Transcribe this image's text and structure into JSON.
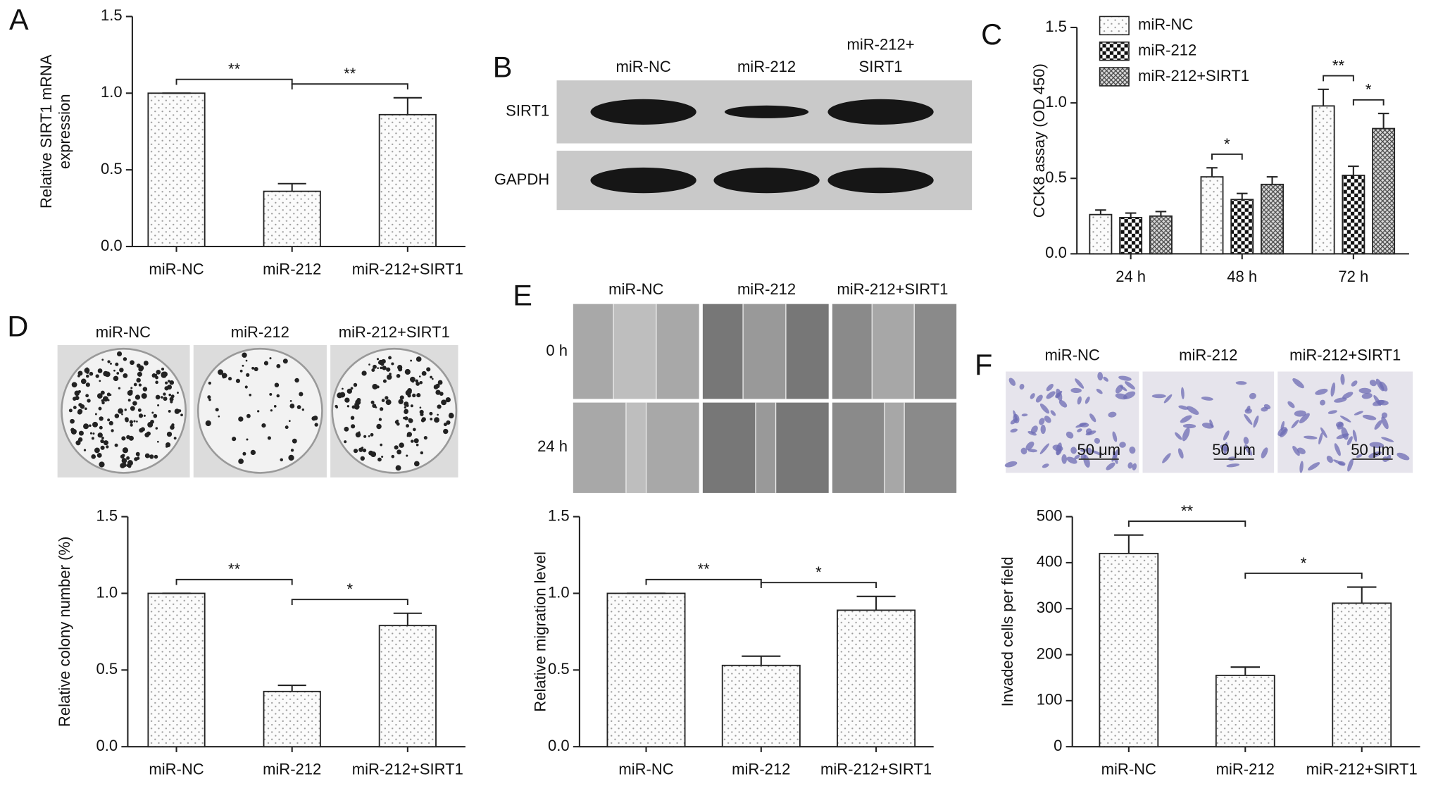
{
  "chart_data": [
    {
      "panel": "A",
      "type": "bar",
      "categories": [
        "miR-NC",
        "miR-212",
        "miR-212+SIRT1"
      ],
      "values": [
        1.0,
        0.36,
        0.86
      ],
      "errors": [
        0,
        0.05,
        0.11
      ],
      "pattern": "dots",
      "ylabel": [
        "Relative SIRT1 mRNA",
        "expression"
      ],
      "ylim": [
        0,
        1.5
      ],
      "yticks": [
        {
          "value": 0,
          "label": "0.0"
        },
        0.5,
        {
          "value": 1,
          "label": "1.0"
        },
        1.5
      ],
      "significance": [
        {
          "label": "**",
          "between": [
            "miR-NC",
            "miR-212"
          ]
        },
        {
          "label": "**",
          "between": [
            "miR-212",
            "miR-212+SIRT1"
          ]
        }
      ]
    },
    {
      "panel": "C",
      "type": "grouped_bar",
      "categories": [
        "24 h",
        "48 h",
        "72 h"
      ],
      "legend": "upper left",
      "series": [
        {
          "name": "miR-NC",
          "pattern": "dots",
          "values": [
            0.26,
            0.51,
            0.98
          ],
          "errors": [
            0.03,
            0.06,
            0.11
          ]
        },
        {
          "name": "miR-212",
          "pattern": "checker",
          "values": [
            0.24,
            0.36,
            0.52
          ],
          "errors": [
            0.03,
            0.04,
            0.06
          ]
        },
        {
          "name": "miR-212+SIRT1",
          "pattern": "crosshatch",
          "values": [
            0.25,
            0.46,
            0.83
          ],
          "errors": [
            0.03,
            0.05,
            0.1
          ]
        }
      ],
      "ylabel": "CCK8 assay (OD 450)",
      "ylim": [
        0,
        1.5
      ],
      "yticks": [
        {
          "value": 0,
          "label": "0.0"
        },
        0.5,
        {
          "value": 1,
          "label": "1.0"
        },
        1.5
      ],
      "significance": [
        {
          "label": "*",
          "category": "48 h",
          "between": [
            "miR-NC",
            "miR-212"
          ]
        },
        {
          "label": "**",
          "category": "72 h",
          "between": [
            "miR-NC",
            "miR-212"
          ]
        },
        {
          "label": "*",
          "category": "72 h",
          "between": [
            "miR-212",
            "miR-212+SIRT1"
          ]
        }
      ]
    },
    {
      "panel": "D",
      "type": "bar",
      "categories": [
        "miR-NC",
        "miR-212",
        "miR-212+SIRT1"
      ],
      "values": [
        1.0,
        0.36,
        0.79
      ],
      "errors": [
        0,
        0.04,
        0.08
      ],
      "pattern": "dots",
      "ylabel": "Relative colony number (%)",
      "ylim": [
        0,
        1.5
      ],
      "yticks": [
        {
          "value": 0,
          "label": "0.0"
        },
        0.5,
        {
          "value": 1,
          "label": "1.0"
        },
        1.5
      ],
      "significance": [
        {
          "label": "**",
          "between": [
            "miR-NC",
            "miR-212"
          ]
        },
        {
          "label": "*",
          "between": [
            "miR-212",
            "miR-212+SIRT1"
          ]
        }
      ]
    },
    {
      "panel": "E",
      "type": "bar",
      "categories": [
        "miR-NC",
        "miR-212",
        "miR-212+SIRT1"
      ],
      "values": [
        1.0,
        0.53,
        0.89
      ],
      "errors": [
        0,
        0.06,
        0.09
      ],
      "pattern": "dots",
      "ylabel": "Relative migration level",
      "ylim": [
        0,
        1.5
      ],
      "yticks": [
        {
          "value": 0,
          "label": "0.0"
        },
        0.5,
        {
          "value": 1,
          "label": "1.0"
        },
        1.5
      ],
      "significance": [
        {
          "label": "**",
          "between": [
            "miR-NC",
            "miR-212"
          ]
        },
        {
          "label": "*",
          "between": [
            "miR-212",
            "miR-212+SIRT1"
          ]
        }
      ]
    },
    {
      "panel": "F",
      "type": "bar",
      "categories": [
        "miR-NC",
        "miR-212",
        "miR-212+SIRT1"
      ],
      "values": [
        420,
        155,
        312
      ],
      "errors": [
        40,
        18,
        35
      ],
      "pattern": "dots",
      "ylabel": "Invaded cells per field",
      "ylim": [
        0,
        500
      ],
      "yticks": [
        0,
        100,
        200,
        300,
        400,
        500
      ],
      "significance": [
        {
          "label": "**",
          "between": [
            "miR-NC",
            "miR-212"
          ]
        },
        {
          "label": "*",
          "between": [
            "miR-212",
            "miR-212+SIRT1"
          ]
        }
      ]
    }
  ],
  "images": [
    {
      "panel": "B",
      "kind": "blot",
      "columns": [
        "miR-NC",
        "miR-212",
        [
          "miR-212+",
          "SIRT1"
        ]
      ],
      "rows": [
        "SIRT1",
        "GAPDH"
      ]
    },
    {
      "kind": "colony",
      "columns": [
        "miR-NC",
        "miR-212",
        "miR-212+SIRT1"
      ]
    },
    {
      "kind": "wound",
      "columns": [
        "miR-NC",
        "miR-212",
        "miR-212+SIRT1"
      ],
      "rows": [
        "0 h",
        "24 h"
      ]
    },
    {
      "kind": "invasion",
      "columns": [
        "miR-NC",
        "miR-212",
        "miR-212+SIRT1"
      ],
      "scale_bar": "50 μm"
    }
  ]
}
